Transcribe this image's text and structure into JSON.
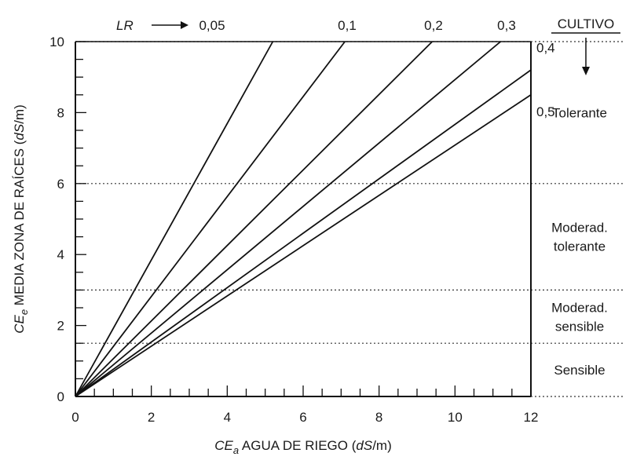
{
  "chart_data": {
    "type": "line",
    "xlabel_prefix": "CE",
    "xlabel_sub": "a",
    "xlabel_rest": " AGUA DE RIEGO (",
    "xlabel_unit_italic": "dS",
    "xlabel_unit_tail": "/m)",
    "ylabel_prefix": "CE",
    "ylabel_sub": "e",
    "ylabel_rest": " MEDIA ZONA DE RAÍCES (",
    "ylabel_unit_italic": "dS",
    "ylabel_unit_tail": "/m)",
    "xlim": [
      0,
      12
    ],
    "ylim": [
      0,
      10
    ],
    "x_ticks": [
      "0",
      "2",
      "4",
      "6",
      "8",
      "10",
      "12"
    ],
    "y_ticks": [
      "0",
      "2",
      "4",
      "6",
      "8",
      "10"
    ],
    "lr_label": "LR",
    "crop_header": "CULTIVO",
    "series": [
      {
        "name": "0,05",
        "x": [
          0,
          5.2
        ],
        "y": [
          0,
          10
        ]
      },
      {
        "name": "0,1",
        "x": [
          0,
          7.1
        ],
        "y": [
          0,
          10
        ]
      },
      {
        "name": "0,2",
        "x": [
          0,
          9.4
        ],
        "y": [
          0,
          10
        ]
      },
      {
        "name": "0,3",
        "x": [
          0,
          11.2
        ],
        "y": [
          0,
          10
        ]
      },
      {
        "name": "0,4",
        "x": [
          0,
          12
        ],
        "y": [
          0,
          9.2
        ]
      },
      {
        "name": "0,5",
        "x": [
          0,
          12
        ],
        "y": [
          0,
          8.5
        ]
      }
    ],
    "thresholds": [
      1.5,
      3,
      6,
      10
    ],
    "zones": [
      {
        "lines": [
          "Tolerante"
        ],
        "y": 8
      },
      {
        "lines": [
          "Moderad.",
          "tolerante"
        ],
        "y": 4.5
      },
      {
        "lines": [
          "Moderad.",
          "sensible"
        ],
        "y": 2.25
      },
      {
        "lines": [
          "Sensible"
        ],
        "y": 0.75
      }
    ]
  }
}
